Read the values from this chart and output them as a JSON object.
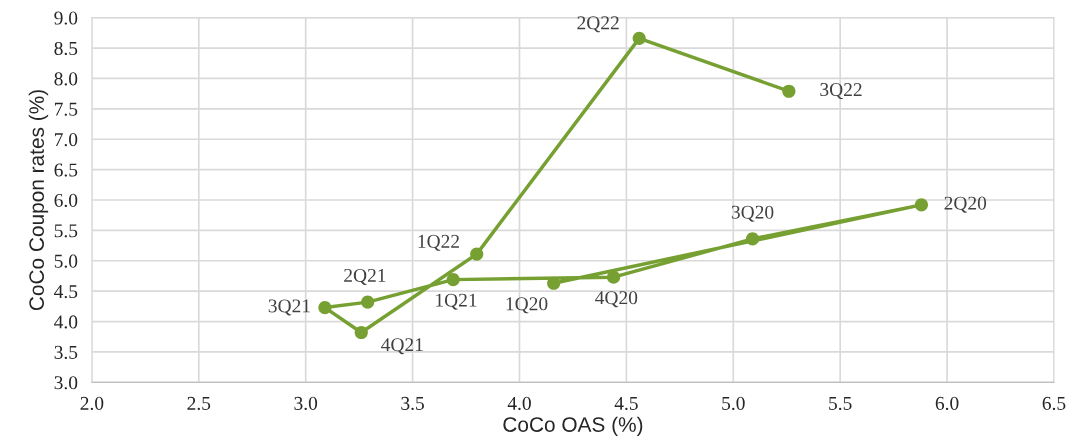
{
  "chart_data": {
    "type": "line",
    "xlabel": "CoCo OAS (%)",
    "ylabel": "CoCo Coupon rates (%)",
    "x": [
      4.16,
      5.88,
      5.09,
      4.44,
      3.69,
      3.29,
      3.09,
      3.26,
      3.8,
      4.56,
      5.26
    ],
    "series": [
      {
        "color": "#77a033",
        "values": [
          4.63,
          5.92,
          5.36,
          4.73,
          4.69,
          4.32,
          4.23,
          3.82,
          5.11,
          8.66,
          7.79
        ]
      }
    ],
    "marker": "circle",
    "line_style": "solid",
    "grid": true,
    "legend": false,
    "xlim": [
      2.0,
      6.5
    ],
    "xticks": [
      {
        "value": 2.0,
        "label": "2.0"
      },
      {
        "value": 2.5,
        "label": "2.5"
      },
      {
        "value": 3.0,
        "label": "3.0"
      },
      {
        "value": 3.5,
        "label": "3.5"
      },
      {
        "value": 4.0,
        "label": "4.0"
      },
      {
        "value": 4.5,
        "label": "4.5"
      },
      {
        "value": 5.0,
        "label": "5.0"
      },
      {
        "value": 5.5,
        "label": "5.5"
      },
      {
        "value": 6.0,
        "label": "6.0"
      },
      {
        "value": 6.5,
        "label": "6.5"
      }
    ],
    "ylim": [
      3.0,
      9.0
    ],
    "yticks": [
      {
        "value": 3.0,
        "label": "3.0"
      },
      {
        "value": 3.5,
        "label": "3.5"
      },
      {
        "value": 4.0,
        "label": "4.0"
      },
      {
        "value": 4.5,
        "label": "4.5"
      },
      {
        "value": 5.0,
        "label": "5.0"
      },
      {
        "value": 5.5,
        "label": "5.5"
      },
      {
        "value": 6.0,
        "label": "6.0"
      },
      {
        "value": 6.5,
        "label": "6.5"
      },
      {
        "value": 7.0,
        "label": "7.0"
      },
      {
        "value": 7.5,
        "label": "7.5"
      },
      {
        "value": 8.0,
        "label": "8.0"
      },
      {
        "value": 8.5,
        "label": "8.5"
      },
      {
        "value": 9.0,
        "label": "9.0"
      }
    ],
    "annotations": [
      {
        "text": "1Q20",
        "x": 4.16,
        "y": 4.63
      },
      {
        "text": "2Q20",
        "x": 5.88,
        "y": 5.92
      },
      {
        "text": "3Q20",
        "x": 5.09,
        "y": 5.36
      },
      {
        "text": "4Q20",
        "x": 4.44,
        "y": 4.73
      },
      {
        "text": "1Q21",
        "x": 3.69,
        "y": 4.69
      },
      {
        "text": "2Q21",
        "x": 3.29,
        "y": 4.32
      },
      {
        "text": "3Q21",
        "x": 3.09,
        "y": 4.23
      },
      {
        "text": "4Q21",
        "x": 3.26,
        "y": 3.82
      },
      {
        "text": "1Q22",
        "x": 3.8,
        "y": 5.11
      },
      {
        "text": "2Q22",
        "x": 4.56,
        "y": 8.66
      },
      {
        "text": "3Q22",
        "x": 5.26,
        "y": 7.79
      }
    ]
  }
}
